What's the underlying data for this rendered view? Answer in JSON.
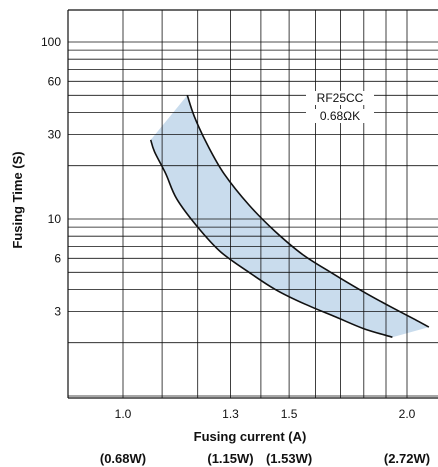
{
  "chart_data": {
    "type": "area",
    "xlabel": "Fusing current (A)",
    "ylabel": "Fusing Time (S)",
    "x_ticks": [
      {
        "value": 1.0,
        "label": "1.0"
      },
      {
        "value": 1.3,
        "label": "1.3"
      },
      {
        "value": 1.5,
        "label": "1.5"
      },
      {
        "value": 2.0,
        "label": "2.0"
      }
    ],
    "y_ticks": [
      {
        "value": 100,
        "label": "100"
      },
      {
        "value": 60,
        "label": "60"
      },
      {
        "value": 30,
        "label": "30"
      },
      {
        "value": 10,
        "label": "10"
      },
      {
        "value": 6,
        "label": "6"
      },
      {
        "value": 3,
        "label": "3"
      }
    ],
    "power_labels": [
      {
        "at": 1.0,
        "label": "(0.68W)"
      },
      {
        "at": 1.3,
        "label": "(1.15W)"
      },
      {
        "at": 1.5,
        "label": "(1.53W)"
      },
      {
        "at": 2.0,
        "label": "(2.72W)"
      }
    ],
    "annotation": [
      "RF25CC",
      "0.68ΩK"
    ],
    "grid": true,
    "band_color": "#c9dced",
    "line_color": "#111111",
    "series": [
      {
        "x": [
          1.07,
          1.08,
          1.11,
          1.14,
          1.2,
          1.27,
          1.36,
          1.45,
          1.56,
          1.68,
          1.8,
          1.93
        ],
        "y": [
          28,
          24,
          18,
          13,
          9,
          6.5,
          5,
          4,
          3.3,
          2.8,
          2.4,
          2.15
        ]
      },
      {
        "x": [
          1.17,
          1.19,
          1.23,
          1.28,
          1.36,
          1.45,
          1.55,
          1.66,
          1.78,
          1.92,
          2.04,
          2.11
        ],
        "y": [
          50,
          38,
          26,
          18,
          12,
          8.5,
          6.3,
          5,
          4,
          3.2,
          2.7,
          2.45
        ]
      }
    ]
  }
}
